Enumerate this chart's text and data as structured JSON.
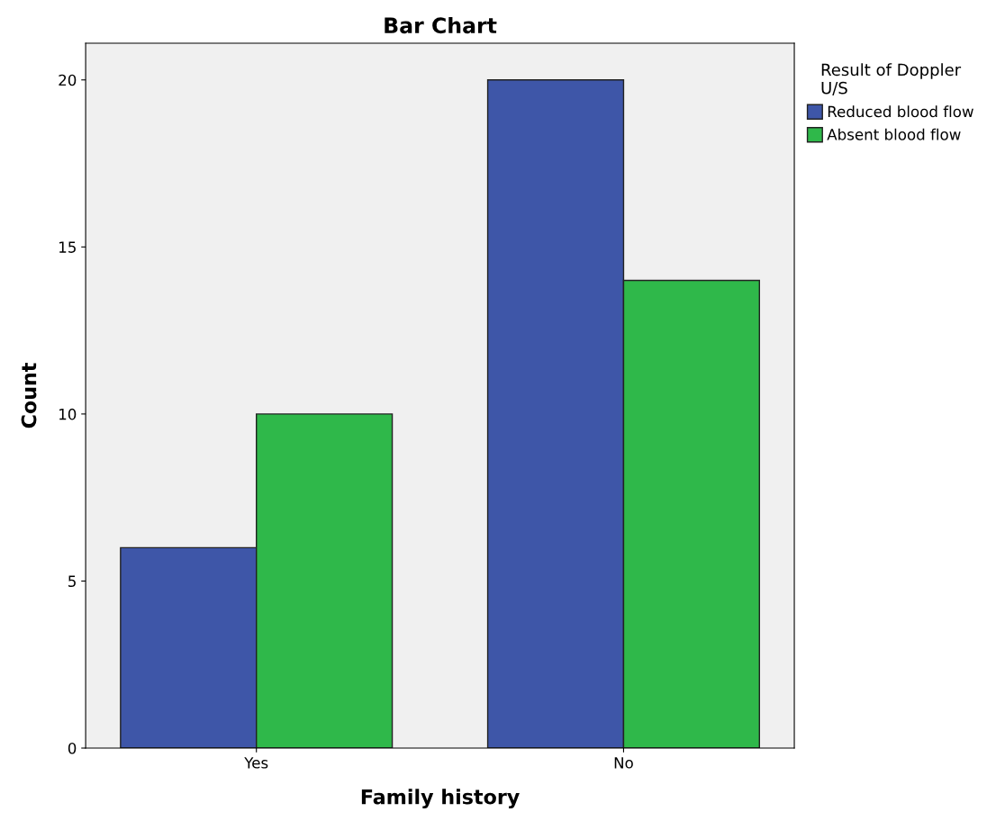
{
  "chart_data": {
    "type": "bar",
    "title": "Bar Chart",
    "xlabel": "Family history",
    "ylabel": "Count",
    "legend_title": "Result of Doppler\nU/S",
    "categories": [
      "Yes",
      "No"
    ],
    "series": [
      {
        "name": "Reduced blood flow",
        "color": "#3e56a8",
        "values": [
          6,
          20
        ]
      },
      {
        "name": "Absent blood flow",
        "color": "#2fb84a",
        "values": [
          10,
          14
        ]
      }
    ],
    "ylim": [
      0,
      21.1
    ],
    "yticks": [
      0,
      5,
      10,
      15,
      20
    ],
    "grid": false,
    "legend": "right"
  }
}
